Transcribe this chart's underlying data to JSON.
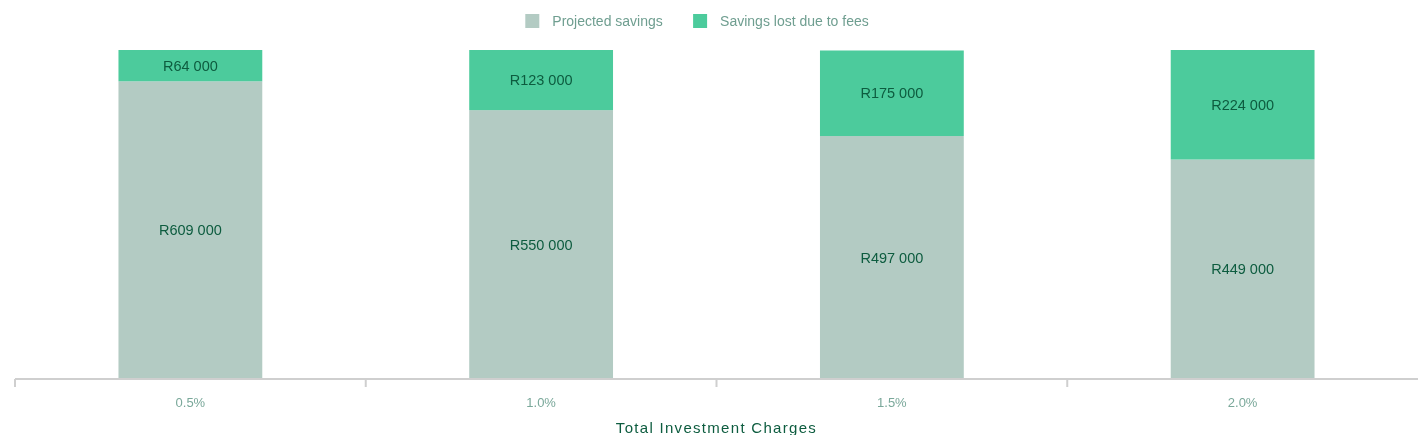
{
  "chart_data": {
    "type": "bar",
    "stacked": true,
    "xlabel": "Total Investment Charges",
    "categories": [
      "0.5%",
      "1.0%",
      "1.5%",
      "2.0%"
    ],
    "series": [
      {
        "name": "Projected savings",
        "color": "#b3cbc3",
        "values": [
          609000,
          550000,
          497000,
          449000
        ],
        "value_labels": [
          "R609 000",
          "R550 000",
          "R497 000",
          "R449 000"
        ]
      },
      {
        "name": "Savings lost due to fees",
        "color": "#4ccb9c",
        "values": [
          64000,
          123000,
          175000,
          224000
        ],
        "value_labels": [
          "R64 000",
          "R123 000",
          "R175 000",
          "R224 000"
        ]
      }
    ],
    "legend": "top",
    "tick_labels": "x"
  }
}
